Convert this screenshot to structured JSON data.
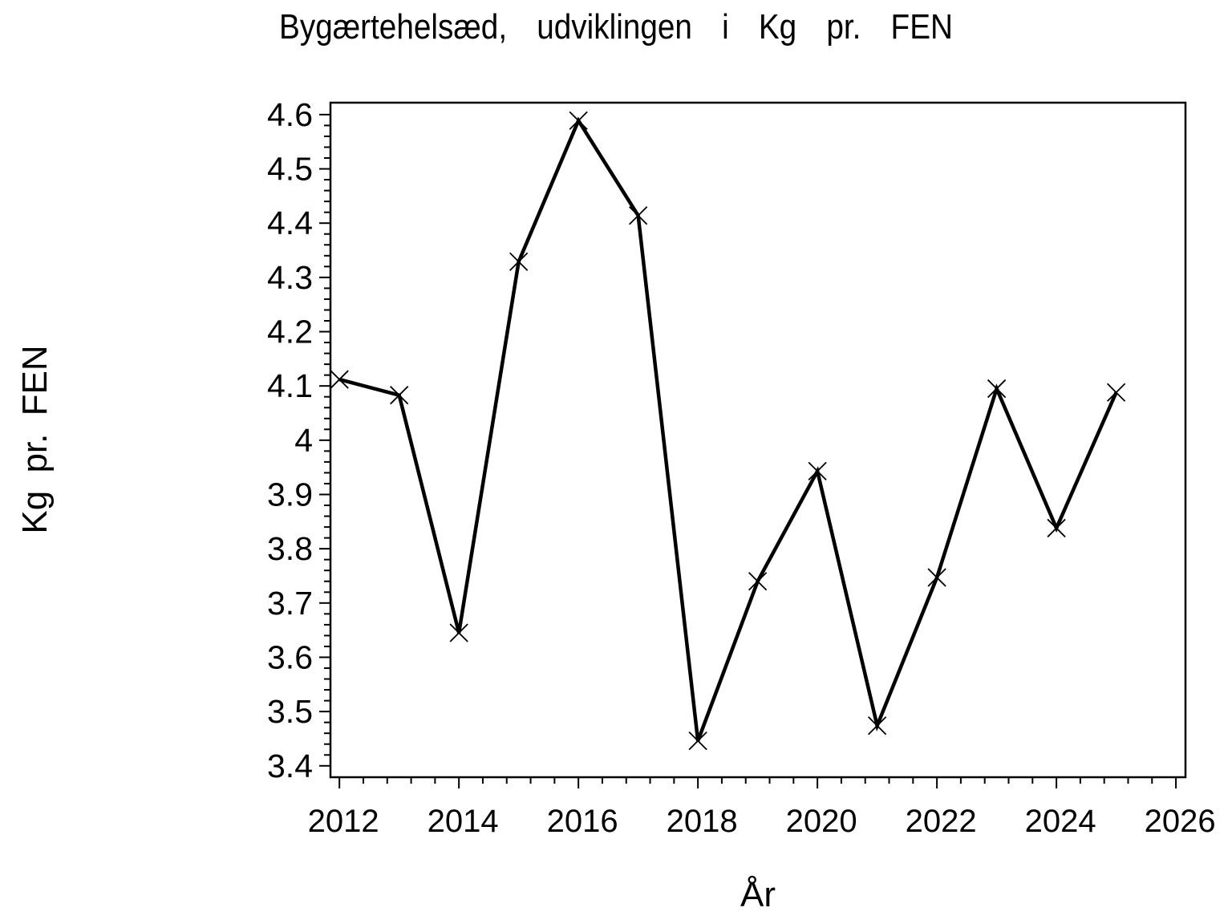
{
  "figure": {
    "background_color": "#ffffff",
    "foreground_color": "#000000"
  },
  "chart_data": {
    "type": "line",
    "title": "Bygærtehelsæd, udviklingen i Kg pr. FEN",
    "xlabel": "År",
    "ylabel": "Kg pr. FEN",
    "x": [
      2012,
      2013,
      2014,
      2015,
      2016,
      2017,
      2018,
      2019,
      2020,
      2021,
      2022,
      2023,
      2024,
      2025
    ],
    "y": [
      4.112,
      4.083,
      3.645,
      4.329,
      4.589,
      4.414,
      3.446,
      3.74,
      3.943,
      3.474,
      3.747,
      4.095,
      3.838,
      4.088
    ],
    "marker": "x-cross",
    "line_color": "#000000",
    "xlim": [
      2011.85,
      2026.16
    ],
    "ylim": [
      3.379,
      4.622
    ],
    "x_ticks_major": [
      2012,
      2014,
      2016,
      2018,
      2020,
      2022,
      2024,
      2026
    ],
    "x_tick_labels": [
      "2012",
      "2014",
      "2016",
      "2018",
      "2020",
      "2022",
      "2024",
      "2026"
    ],
    "x_minor_step": 0.4,
    "y_ticks_major": [
      3.4,
      3.5,
      3.6,
      3.7,
      3.8,
      3.9,
      4.0,
      4.1,
      4.2,
      4.3,
      4.4,
      4.5,
      4.6
    ],
    "y_tick_labels": [
      "3.4",
      "3.5",
      "3.6",
      "3.7",
      "3.8",
      "3.9",
      "4",
      "4.1",
      "4.2",
      "4.3",
      "4.4",
      "4.5",
      "4.6"
    ],
    "y_minor_step": 0.02,
    "grid": false,
    "legend": false,
    "frame": true
  }
}
